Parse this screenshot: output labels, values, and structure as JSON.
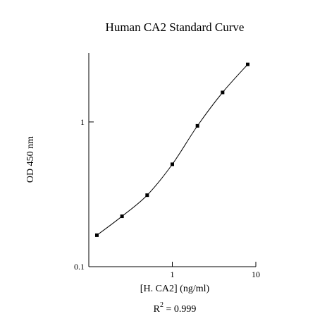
{
  "chart_data": {
    "type": "scatter",
    "title": "Human CA2 Standard Curve",
    "xlabel": "[H. CA2] (ng/ml)",
    "ylabel": "OD 450 nm",
    "x_scale": "log",
    "y_scale": "log",
    "xlim": [
      0.1,
      10
    ],
    "ylim": [
      0.1,
      3
    ],
    "x_ticks": [
      {
        "value": 1,
        "label": "1"
      },
      {
        "value": 10,
        "label": "10"
      }
    ],
    "y_ticks": [
      {
        "value": 0.1,
        "label": "0.1"
      },
      {
        "value": 1,
        "label": "1"
      }
    ],
    "grid": false,
    "series": [
      {
        "x": [
          0.125,
          0.25,
          0.5,
          1,
          2,
          4,
          8
        ],
        "y": [
          0.165,
          0.223,
          0.312,
          0.51,
          0.94,
          1.6,
          2.5
        ],
        "show_markers": true,
        "fit_curve": true
      }
    ],
    "annotation": {
      "prefix": "R",
      "superscript": "2",
      "suffix": " = 0.999"
    }
  }
}
